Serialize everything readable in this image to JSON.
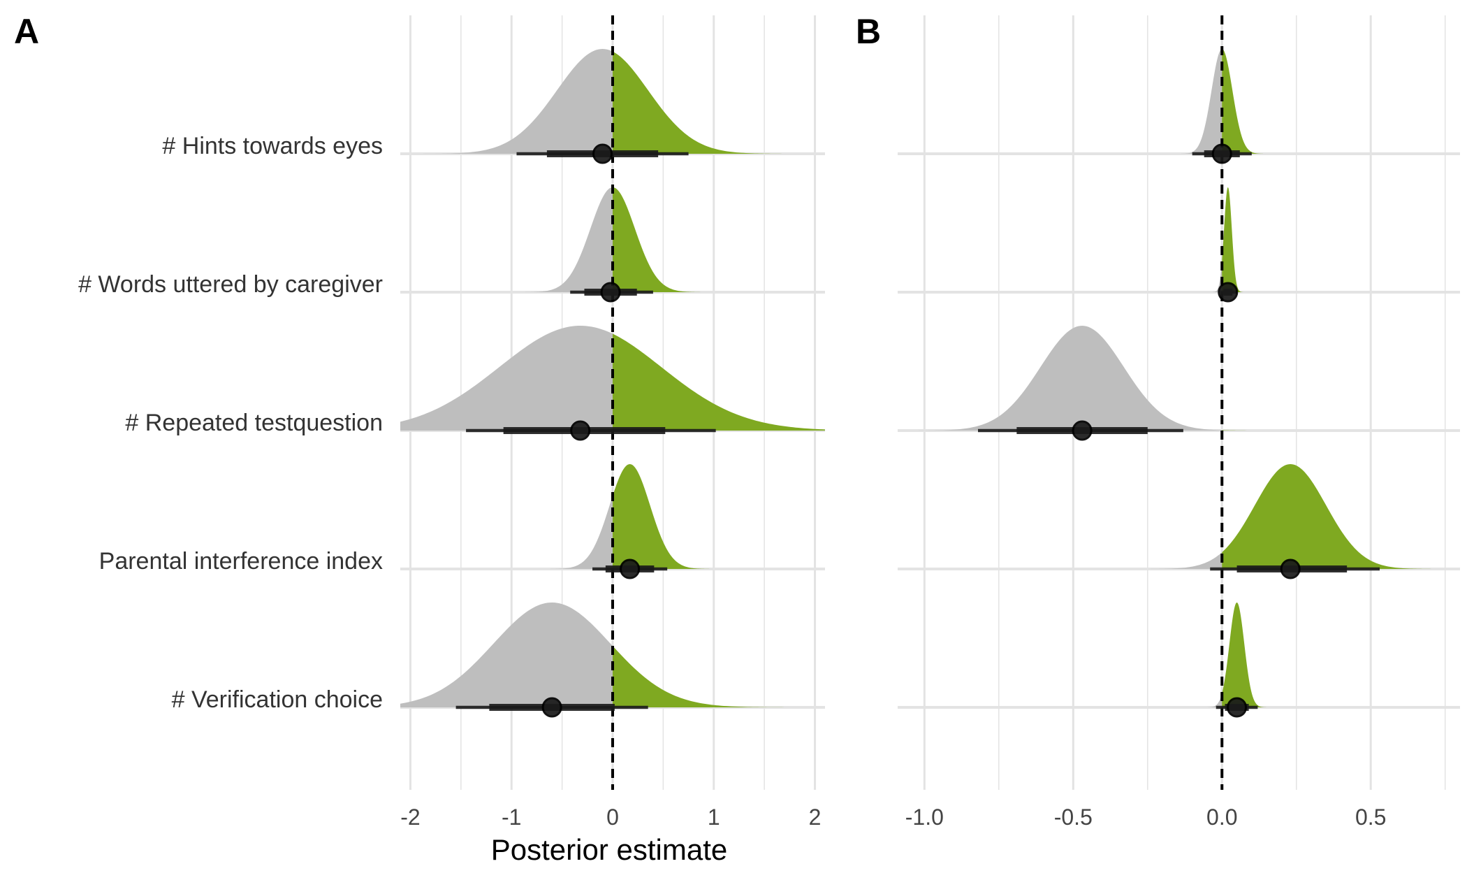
{
  "figure": {
    "xlabel": "Posterior estimate",
    "colors": {
      "negative": "#bebebe",
      "positive": "#7fa921",
      "interval": "#1a1a1a",
      "zero_line": "#000000",
      "grid": "#e3e3e3"
    }
  },
  "chart_data": [
    {
      "panel": "A",
      "type": "density-interval",
      "categories": [
        "# Hints towards eyes",
        "# Words uttered by caregiver",
        "# Repeated testquestion",
        "Parental interference index",
        "# Verification choice"
      ],
      "xlim": [
        -2.1,
        2.1
      ],
      "xticks": [
        -2,
        -1,
        0,
        1,
        2
      ],
      "xtick_labels": [
        "-2",
        "-1",
        "0",
        "1",
        "2"
      ],
      "series": [
        {
          "category": "# Hints towards eyes",
          "estimate": -0.1,
          "mean": -0.1,
          "sd": 0.45,
          "ci66": [
            -0.65,
            0.45
          ],
          "ci95": [
            -0.95,
            0.75
          ]
        },
        {
          "category": "# Words uttered by caregiver",
          "estimate": -0.02,
          "mean": 0.0,
          "sd": 0.22,
          "ci66": [
            -0.28,
            0.24
          ],
          "ci95": [
            -0.42,
            0.4
          ]
        },
        {
          "category": "# Repeated testquestion",
          "estimate": -0.32,
          "mean": -0.32,
          "sd": 0.8,
          "ci66": [
            -1.08,
            0.52
          ],
          "ci95": [
            -1.45,
            1.02
          ]
        },
        {
          "category": "Parental interference index",
          "estimate": 0.17,
          "mean": 0.17,
          "sd": 0.2,
          "ci66": [
            -0.07,
            0.41
          ],
          "ci95": [
            -0.2,
            0.54
          ]
        },
        {
          "category": "# Verification choice",
          "estimate": -0.6,
          "mean": -0.6,
          "sd": 0.58,
          "ci66": [
            -1.22,
            0.02
          ],
          "ci95": [
            -1.55,
            0.35
          ]
        }
      ]
    },
    {
      "panel": "B",
      "type": "density-interval",
      "categories": [
        "# Hints towards eyes",
        "# Words uttered by caregiver",
        "# Repeated testquestion",
        "Parental interference index",
        "# Verification choice"
      ],
      "xlim": [
        -1.09,
        0.8
      ],
      "xticks": [
        -1.0,
        -0.5,
        0.0,
        0.5
      ],
      "xtick_labels": [
        "-1.0",
        "-0.5",
        "0.0",
        "0.5"
      ],
      "series": [
        {
          "category": "# Hints towards eyes",
          "estimate": 0.0,
          "mean": 0.0,
          "sd": 0.035,
          "ci66": [
            -0.06,
            0.06
          ],
          "ci95": [
            -0.1,
            0.1
          ]
        },
        {
          "category": "# Words uttered by caregiver",
          "estimate": 0.02,
          "mean": 0.02,
          "sd": 0.013,
          "ci66": [
            0.005,
            0.035
          ],
          "ci95": [
            -0.005,
            0.05
          ]
        },
        {
          "category": "# Repeated testquestion",
          "estimate": -0.47,
          "mean": -0.47,
          "sd": 0.14,
          "ci66": [
            -0.69,
            -0.25
          ],
          "ci95": [
            -0.82,
            -0.13
          ]
        },
        {
          "category": "Parental interference index",
          "estimate": 0.23,
          "mean": 0.23,
          "sd": 0.12,
          "ci66": [
            0.05,
            0.42
          ],
          "ci95": [
            -0.04,
            0.53
          ]
        },
        {
          "category": "# Verification choice",
          "estimate": 0.05,
          "mean": 0.05,
          "sd": 0.025,
          "ci66": [
            0.01,
            0.09
          ],
          "ci95": [
            -0.02,
            0.12
          ]
        }
      ]
    }
  ]
}
